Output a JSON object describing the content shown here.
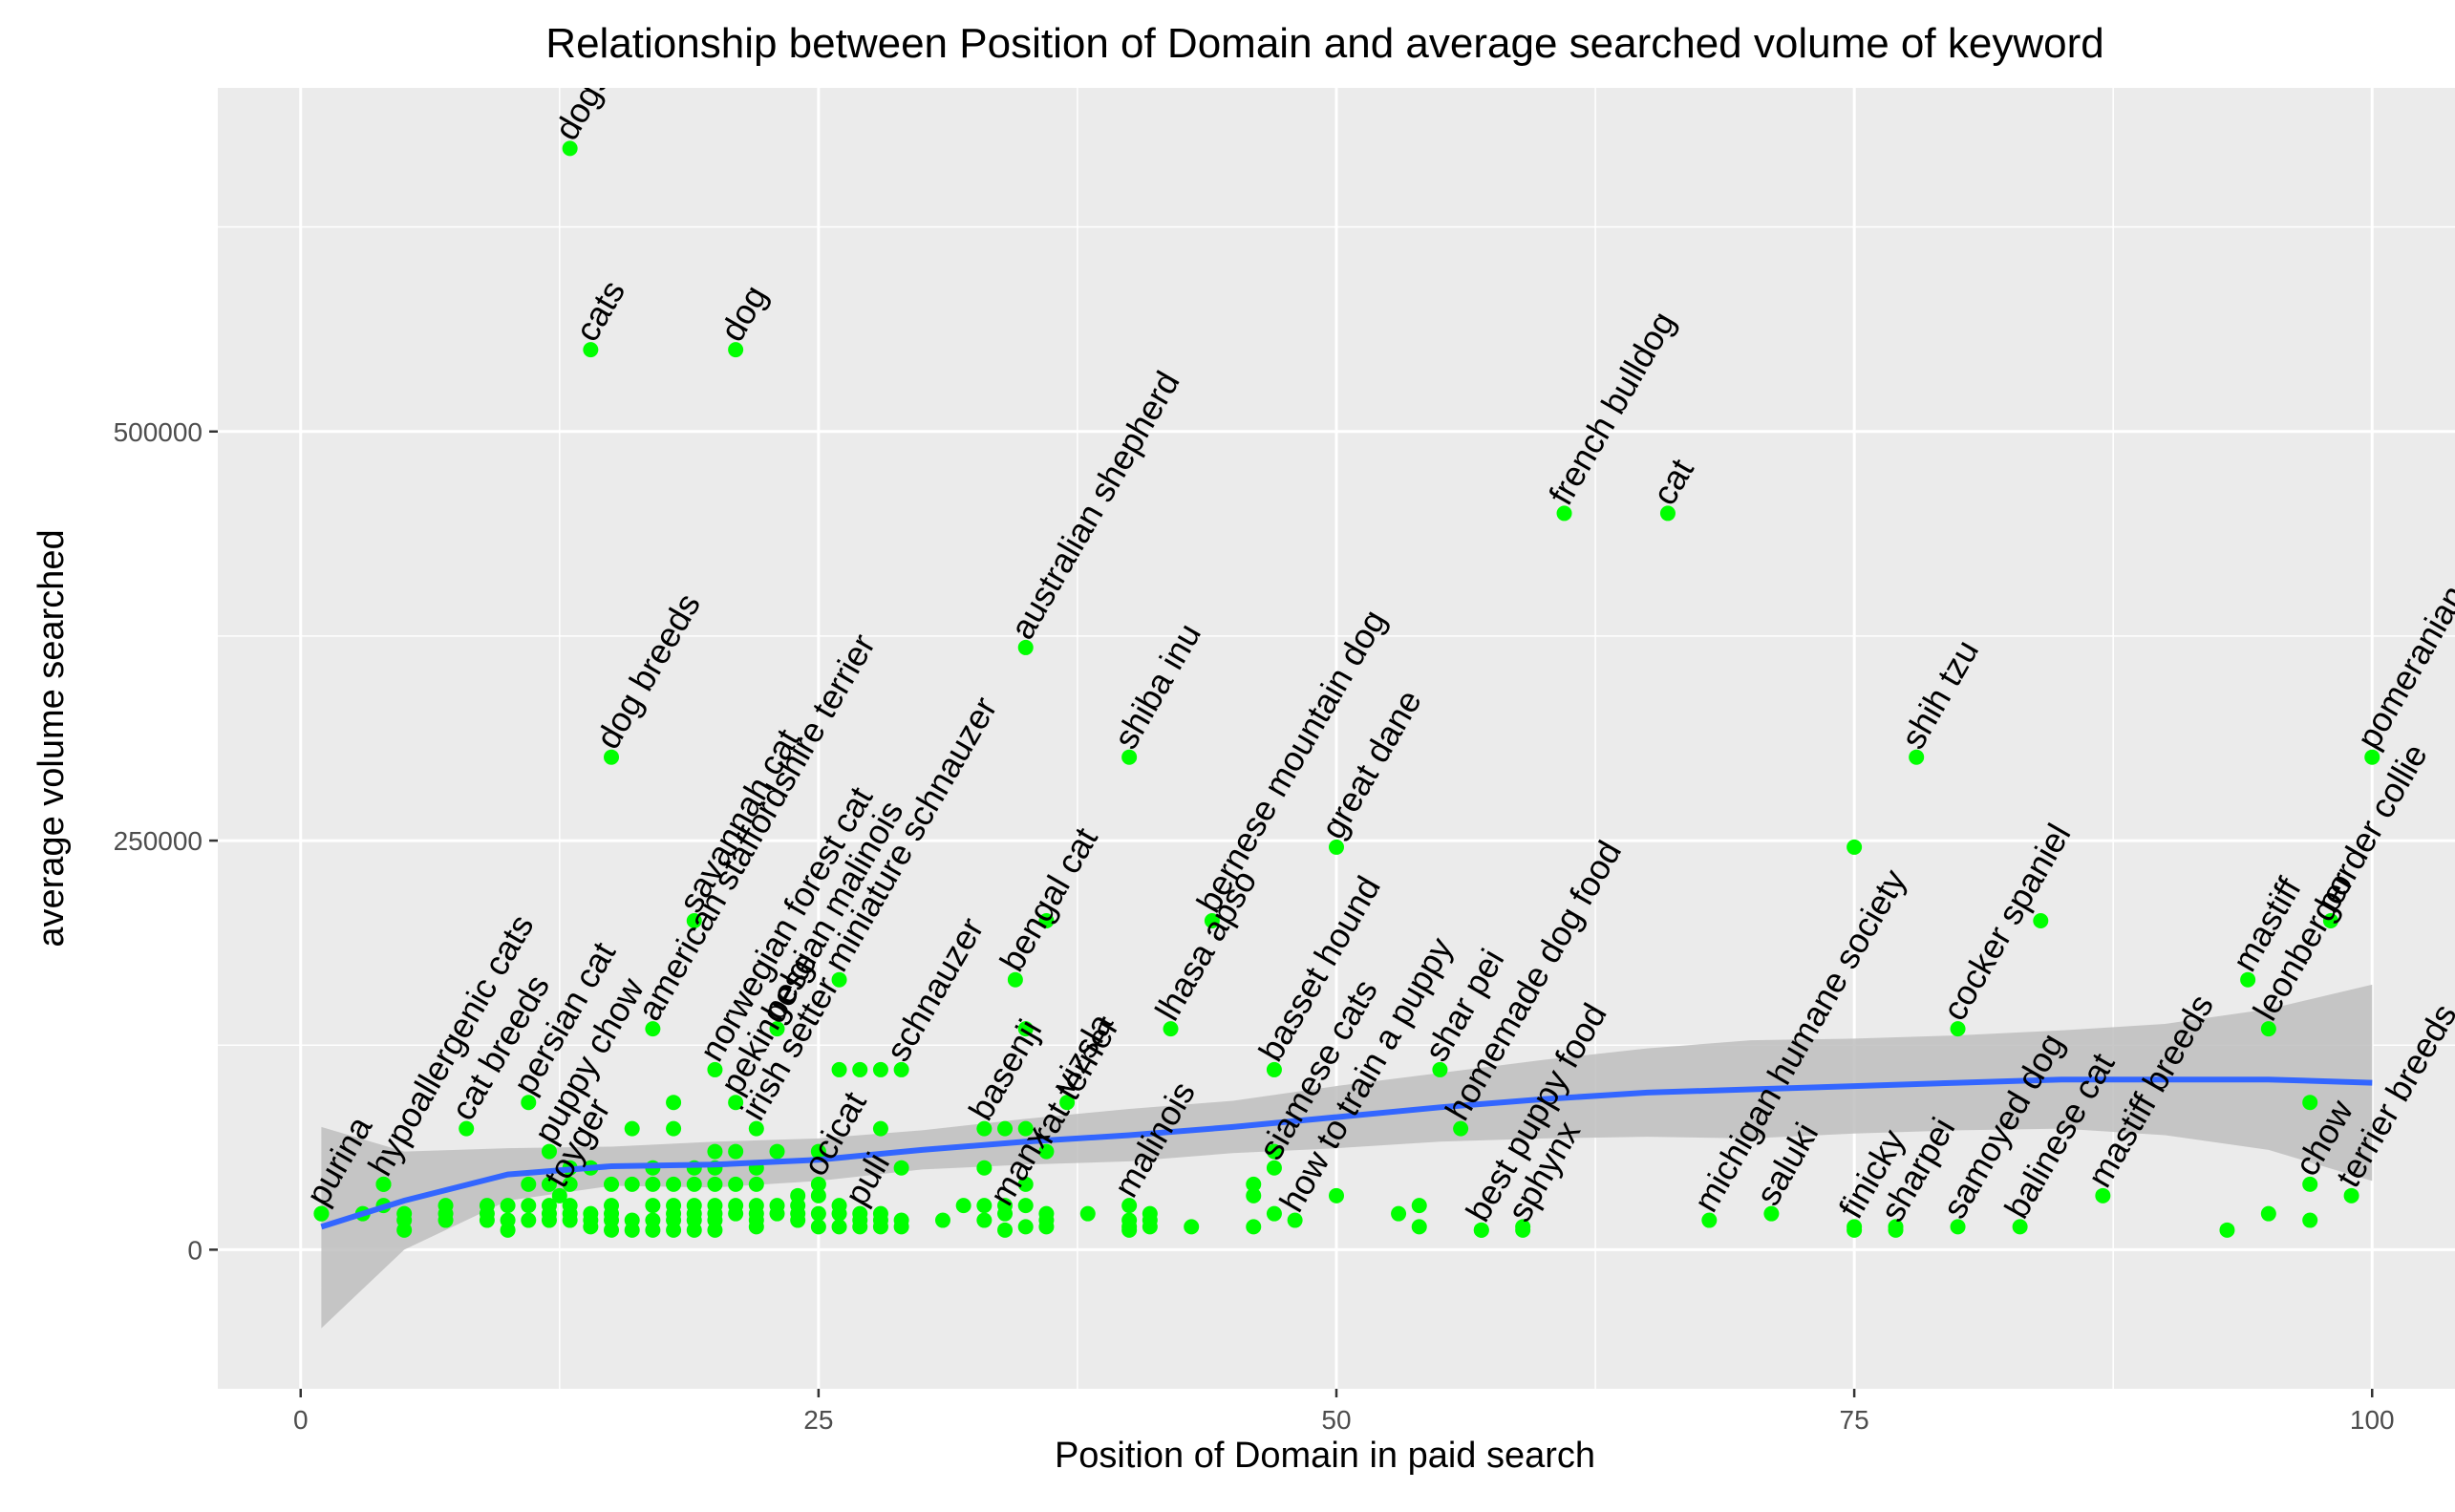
{
  "chart_data": {
    "type": "scatter",
    "title": "Relationship between Position of Domain and  average searched volume of keyword",
    "xlabel": "Position of Domain in paid search",
    "ylabel": "average volume searched",
    "xlim": [
      -4,
      104
    ],
    "ylim": [
      -85000,
      710000
    ],
    "x_ticks": [
      0,
      25,
      50,
      75,
      100
    ],
    "x_tick_labels": [
      "0",
      "25",
      "50",
      "75",
      "100"
    ],
    "y_ticks": [
      0,
      250000,
      500000
    ],
    "y_tick_labels": [
      "0",
      "250000",
      "500000"
    ],
    "grid": true,
    "legend": "none",
    "colors": {
      "points": "#00ff00",
      "smooth": "#3366ff",
      "band": "#bebebe",
      "panel": "#ebebeb",
      "grid": "#ffffff"
    },
    "labeled_points": [
      {
        "x": 1,
        "y": 22000,
        "label": "purina"
      },
      {
        "x": 4,
        "y": 40000,
        "label": "hypoallergenic cats"
      },
      {
        "x": 8,
        "y": 74000,
        "label": "cat breeds"
      },
      {
        "x": 11,
        "y": 90000,
        "label": "persian cat"
      },
      {
        "x": 12,
        "y": 60000,
        "label": "puppy chow"
      },
      {
        "x": 12.5,
        "y": 33000,
        "label": "toyger"
      },
      {
        "x": 13,
        "y": 673000,
        "label": "dogs"
      },
      {
        "x": 14,
        "y": 550000,
        "label": "cats"
      },
      {
        "x": 15,
        "y": 301000,
        "label": "dog breeds"
      },
      {
        "x": 17,
        "y": 135000,
        "label": "american staffordshire terrier"
      },
      {
        "x": 19,
        "y": 201000,
        "label": "savannah cat"
      },
      {
        "x": 20,
        "y": 110000,
        "label": "norwegian forest cat"
      },
      {
        "x": 21,
        "y": 90000,
        "label": "pekingese"
      },
      {
        "x": 21,
        "y": 550000,
        "label": "dog"
      },
      {
        "x": 22,
        "y": 74000,
        "label": "irish setter"
      },
      {
        "x": 23,
        "y": 135000,
        "label": "belgian malinois"
      },
      {
        "x": 25,
        "y": 40000,
        "label": "ocicat"
      },
      {
        "x": 26,
        "y": 165000,
        "label": "miniature schnauzer"
      },
      {
        "x": 27,
        "y": 22000,
        "label": "puli"
      },
      {
        "x": 29,
        "y": 110000,
        "label": "schnauzer"
      },
      {
        "x": 33,
        "y": 74000,
        "label": "basenji"
      },
      {
        "x": 34,
        "y": 22000,
        "label": "manx"
      },
      {
        "x": 34.5,
        "y": 165000,
        "label": "bengal cat"
      },
      {
        "x": 35,
        "y": 368000,
        "label": "australian shepherd"
      },
      {
        "x": 36,
        "y": 60000,
        "label": "rat terrier"
      },
      {
        "x": 37,
        "y": 90000,
        "label": "vizsla"
      },
      {
        "x": 40,
        "y": 27000,
        "label": "malinois"
      },
      {
        "x": 40,
        "y": 301000,
        "label": "shiba inu"
      },
      {
        "x": 42,
        "y": 135000,
        "label": "lhasa apso"
      },
      {
        "x": 44,
        "y": 201000,
        "label": "bernese mountain dog"
      },
      {
        "x": 47,
        "y": 110000,
        "label": "basset hound"
      },
      {
        "x": 47,
        "y": 50000,
        "label": "siamese cats"
      },
      {
        "x": 48,
        "y": 18000,
        "label": "how to train a puppy"
      },
      {
        "x": 50,
        "y": 246000,
        "label": "great dane"
      },
      {
        "x": 55,
        "y": 110000,
        "label": "shar pei"
      },
      {
        "x": 56,
        "y": 74000,
        "label": "homemade dog food"
      },
      {
        "x": 57,
        "y": 12000,
        "label": "best puppy food"
      },
      {
        "x": 59,
        "y": 12000,
        "label": "sphynx"
      },
      {
        "x": 61,
        "y": 450000,
        "label": "french bulldog"
      },
      {
        "x": 66,
        "y": 450000,
        "label": "cat"
      },
      {
        "x": 68,
        "y": 18000,
        "label": "michigan humane society"
      },
      {
        "x": 71,
        "y": 22000,
        "label": "saluki"
      },
      {
        "x": 75,
        "y": 14000,
        "label": "finicky"
      },
      {
        "x": 77,
        "y": 12000,
        "label": "sharpei"
      },
      {
        "x": 78,
        "y": 301000,
        "label": "shih tzu"
      },
      {
        "x": 80,
        "y": 14000,
        "label": "samoyed dog"
      },
      {
        "x": 80,
        "y": 135000,
        "label": "cocker spaniel"
      },
      {
        "x": 83,
        "y": 14000,
        "label": "balinese cat"
      },
      {
        "x": 87,
        "y": 33000,
        "label": "mastiff breeds"
      },
      {
        "x": 94,
        "y": 165000,
        "label": "mastiff"
      },
      {
        "x": 95,
        "y": 135000,
        "label": "leonberger"
      },
      {
        "x": 97,
        "y": 40000,
        "label": "chow"
      },
      {
        "x": 98,
        "y": 201000,
        "label": "border collie"
      },
      {
        "x": 99,
        "y": 33000,
        "label": "terrier breeds"
      },
      {
        "x": 100,
        "y": 301000,
        "label": "pomeranian"
      }
    ],
    "points": [
      [
        1,
        22000
      ],
      [
        3,
        22000
      ],
      [
        4,
        27000
      ],
      [
        4,
        40000
      ],
      [
        5,
        12000
      ],
      [
        5,
        18000
      ],
      [
        5,
        22000
      ],
      [
        7,
        18000
      ],
      [
        7,
        22000
      ],
      [
        7,
        27000
      ],
      [
        9,
        18000
      ],
      [
        9,
        22000
      ],
      [
        9,
        27000
      ],
      [
        10,
        12000
      ],
      [
        10,
        18000
      ],
      [
        10,
        27000
      ],
      [
        11,
        18000
      ],
      [
        11,
        27000
      ],
      [
        11,
        40000
      ],
      [
        12,
        18000
      ],
      [
        12,
        22000
      ],
      [
        12,
        27000
      ],
      [
        12,
        40000
      ],
      [
        13,
        18000
      ],
      [
        13,
        22000
      ],
      [
        13,
        27000
      ],
      [
        13,
        40000
      ],
      [
        13,
        50000
      ],
      [
        14,
        14000
      ],
      [
        14,
        18000
      ],
      [
        14,
        22000
      ],
      [
        14,
        50000
      ],
      [
        15,
        12000
      ],
      [
        15,
        18000
      ],
      [
        15,
        22000
      ],
      [
        15,
        27000
      ],
      [
        15,
        40000
      ],
      [
        16,
        12000
      ],
      [
        16,
        18000
      ],
      [
        16,
        40000
      ],
      [
        16,
        74000
      ],
      [
        17,
        12000
      ],
      [
        17,
        18000
      ],
      [
        17,
        27000
      ],
      [
        17,
        40000
      ],
      [
        17,
        50000
      ],
      [
        18,
        12000
      ],
      [
        18,
        18000
      ],
      [
        18,
        22000
      ],
      [
        18,
        27000
      ],
      [
        18,
        40000
      ],
      [
        18,
        74000
      ],
      [
        18,
        90000
      ],
      [
        19,
        12000
      ],
      [
        19,
        18000
      ],
      [
        19,
        22000
      ],
      [
        19,
        27000
      ],
      [
        19,
        40000
      ],
      [
        19,
        50000
      ],
      [
        20,
        12000
      ],
      [
        20,
        18000
      ],
      [
        20,
        22000
      ],
      [
        20,
        27000
      ],
      [
        20,
        40000
      ],
      [
        20,
        50000
      ],
      [
        20,
        60000
      ],
      [
        21,
        22000
      ],
      [
        21,
        27000
      ],
      [
        21,
        40000
      ],
      [
        21,
        60000
      ],
      [
        22,
        14000
      ],
      [
        22,
        18000
      ],
      [
        22,
        22000
      ],
      [
        22,
        27000
      ],
      [
        22,
        40000
      ],
      [
        22,
        50000
      ],
      [
        23,
        22000
      ],
      [
        23,
        27000
      ],
      [
        23,
        60000
      ],
      [
        24,
        18000
      ],
      [
        24,
        22000
      ],
      [
        24,
        27000
      ],
      [
        24,
        33000
      ],
      [
        25,
        14000
      ],
      [
        25,
        22000
      ],
      [
        25,
        33000
      ],
      [
        25,
        60000
      ],
      [
        26,
        14000
      ],
      [
        26,
        22000
      ],
      [
        26,
        27000
      ],
      [
        26,
        110000
      ],
      [
        27,
        14000
      ],
      [
        27,
        18000
      ],
      [
        27,
        110000
      ],
      [
        28,
        14000
      ],
      [
        28,
        18000
      ],
      [
        28,
        22000
      ],
      [
        28,
        74000
      ],
      [
        28,
        110000
      ],
      [
        29,
        14000
      ],
      [
        29,
        18000
      ],
      [
        29,
        50000
      ],
      [
        31,
        18000
      ],
      [
        32,
        27000
      ],
      [
        33,
        18000
      ],
      [
        33,
        27000
      ],
      [
        33,
        50000
      ],
      [
        34,
        12000
      ],
      [
        34,
        27000
      ],
      [
        34,
        74000
      ],
      [
        35,
        14000
      ],
      [
        35,
        27000
      ],
      [
        35,
        40000
      ],
      [
        35,
        74000
      ],
      [
        35,
        135000
      ],
      [
        36,
        14000
      ],
      [
        36,
        18000
      ],
      [
        36,
        22000
      ],
      [
        36,
        201000
      ],
      [
        38,
        22000
      ],
      [
        40,
        12000
      ],
      [
        40,
        14000
      ],
      [
        40,
        18000
      ],
      [
        41,
        14000
      ],
      [
        41,
        18000
      ],
      [
        41,
        22000
      ],
      [
        43,
        14000
      ],
      [
        46,
        14000
      ],
      [
        46,
        33000
      ],
      [
        46,
        40000
      ],
      [
        47,
        22000
      ],
      [
        47,
        60000
      ],
      [
        50,
        33000
      ],
      [
        53,
        22000
      ],
      [
        54,
        14000
      ],
      [
        54,
        27000
      ],
      [
        57,
        12000
      ],
      [
        59,
        14000
      ],
      [
        75,
        246000
      ],
      [
        75,
        12000
      ],
      [
        77,
        14000
      ],
      [
        84,
        201000
      ],
      [
        93,
        12000
      ],
      [
        95,
        22000
      ],
      [
        97,
        18000
      ],
      [
        97,
        90000
      ]
    ],
    "smooth": [
      [
        1,
        14000
      ],
      [
        5,
        30000
      ],
      [
        10,
        46000
      ],
      [
        15,
        51000
      ],
      [
        20,
        52000
      ],
      [
        25,
        55000
      ],
      [
        30,
        61000
      ],
      [
        35,
        66000
      ],
      [
        40,
        70000
      ],
      [
        45,
        75000
      ],
      [
        50,
        81000
      ],
      [
        55,
        87000
      ],
      [
        60,
        92000
      ],
      [
        65,
        96000
      ],
      [
        70,
        98000
      ],
      [
        75,
        100000
      ],
      [
        80,
        102000
      ],
      [
        85,
        104000
      ],
      [
        90,
        104000
      ],
      [
        95,
        104000
      ],
      [
        100,
        102000
      ]
    ],
    "band_upper": [
      [
        1,
        75000
      ],
      [
        5,
        60000
      ],
      [
        10,
        62000
      ],
      [
        15,
        63000
      ],
      [
        20,
        66000
      ],
      [
        25,
        68000
      ],
      [
        30,
        73000
      ],
      [
        35,
        80000
      ],
      [
        40,
        86000
      ],
      [
        45,
        91000
      ],
      [
        50,
        100000
      ],
      [
        55,
        108000
      ],
      [
        60,
        116000
      ],
      [
        65,
        123000
      ],
      [
        70,
        128000
      ],
      [
        75,
        129000
      ],
      [
        80,
        131000
      ],
      [
        85,
        134000
      ],
      [
        90,
        138000
      ],
      [
        95,
        147000
      ],
      [
        100,
        162000
      ]
    ],
    "band_lower": [
      [
        1,
        -48000
      ],
      [
        5,
        0
      ],
      [
        10,
        30000
      ],
      [
        15,
        39000
      ],
      [
        20,
        38000
      ],
      [
        25,
        42000
      ],
      [
        30,
        49000
      ],
      [
        35,
        52000
      ],
      [
        40,
        54000
      ],
      [
        45,
        59000
      ],
      [
        50,
        62000
      ],
      [
        55,
        66000
      ],
      [
        60,
        68000
      ],
      [
        65,
        69000
      ],
      [
        70,
        68000
      ],
      [
        75,
        71000
      ],
      [
        80,
        73000
      ],
      [
        85,
        74000
      ],
      [
        90,
        70000
      ],
      [
        95,
        61000
      ],
      [
        100,
        42000
      ]
    ]
  }
}
